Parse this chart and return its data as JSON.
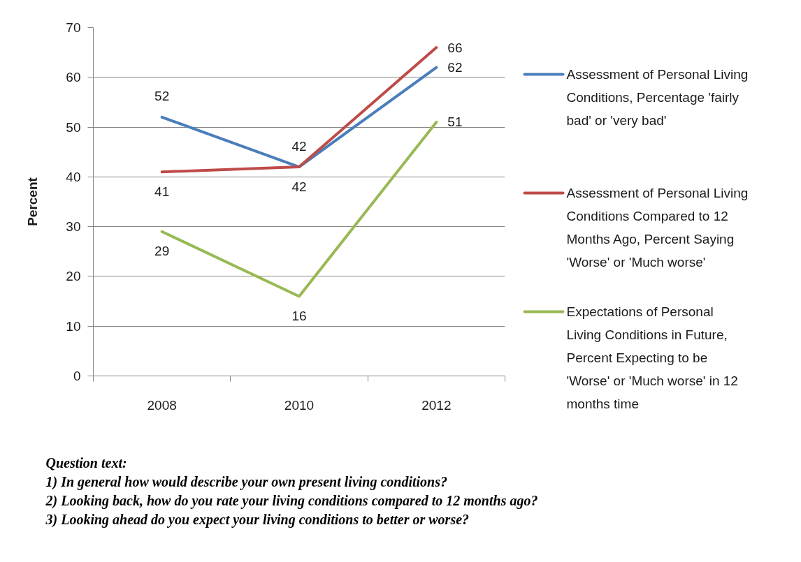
{
  "chart_data": {
    "type": "line",
    "ylabel": "Percent",
    "categories": [
      "2008",
      "2010",
      "2012"
    ],
    "series": [
      {
        "name": "Assessment of Personal Living Conditions, Percentage 'fairly bad' or 'very bad'",
        "color": "#4a7ebb",
        "values": [
          52,
          42,
          62
        ]
      },
      {
        "name": "Assessment of Personal Living Conditions Compared to 12 Months Ago, Percent Saying 'Worse' or 'Much worse'",
        "color": "#be4b48",
        "values": [
          41,
          42,
          66
        ]
      },
      {
        "name": "Expectations of Personal Living Conditions in Future, Percent Expecting to be 'Worse' or 'Much worse' in 12 months time",
        "color": "#98b954",
        "values": [
          29,
          16,
          51
        ]
      }
    ],
    "ylim": [
      0,
      70
    ],
    "yticks": [
      0,
      10,
      20,
      30,
      40,
      50,
      60,
      70
    ],
    "grid": "y",
    "legend": "right",
    "data_labels": true,
    "line_style": "solid",
    "annotations": [
      "Question text:",
      "1) In general how would describe your own present living conditions?",
      "2) Looking back, how do you rate your living conditions compared to 12 months ago?",
      "3) Looking ahead do you expect your living conditions to better or worse?"
    ]
  }
}
